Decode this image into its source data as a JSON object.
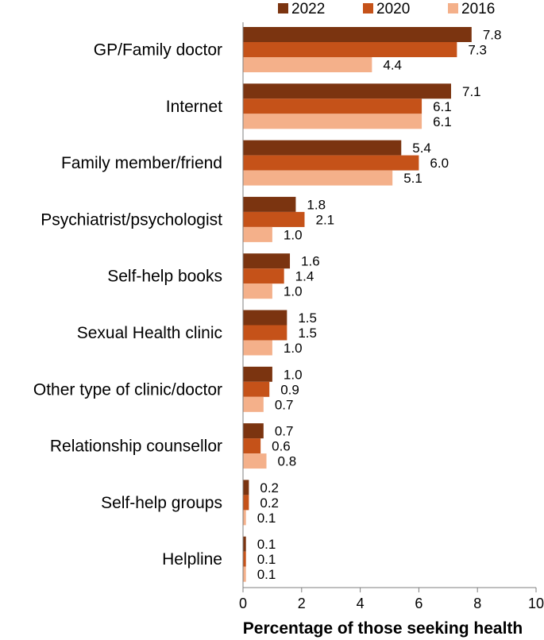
{
  "chart_data": {
    "type": "bar",
    "orientation": "horizontal",
    "title": "",
    "xlabel": "Percentage of those seeking health",
    "ylabel": "",
    "xlim": [
      0,
      10
    ],
    "xticks": [
      0,
      2,
      4,
      6,
      8,
      10
    ],
    "legend_position": "top-right",
    "categories": [
      "GP/Family doctor",
      "Internet",
      "Family member/friend",
      "Psychiatrist/psychologist",
      "Self-help books",
      "Sexual Health clinic",
      "Other type of clinic/doctor",
      "Relationship counsellor",
      "Self-help groups",
      "Helpline"
    ],
    "series": [
      {
        "name": "2022",
        "color": "#7b3410",
        "values": [
          7.8,
          7.1,
          5.4,
          1.8,
          1.6,
          1.5,
          1.0,
          0.7,
          0.2,
          0.1
        ]
      },
      {
        "name": "2020",
        "color": "#c55219",
        "values": [
          7.3,
          6.1,
          6.0,
          2.1,
          1.4,
          1.5,
          0.9,
          0.6,
          0.2,
          0.1
        ]
      },
      {
        "name": "2016",
        "color": "#f4b08a",
        "values": [
          4.4,
          6.1,
          5.1,
          1.0,
          1.0,
          1.0,
          0.7,
          0.8,
          0.1,
          0.1
        ]
      }
    ]
  }
}
